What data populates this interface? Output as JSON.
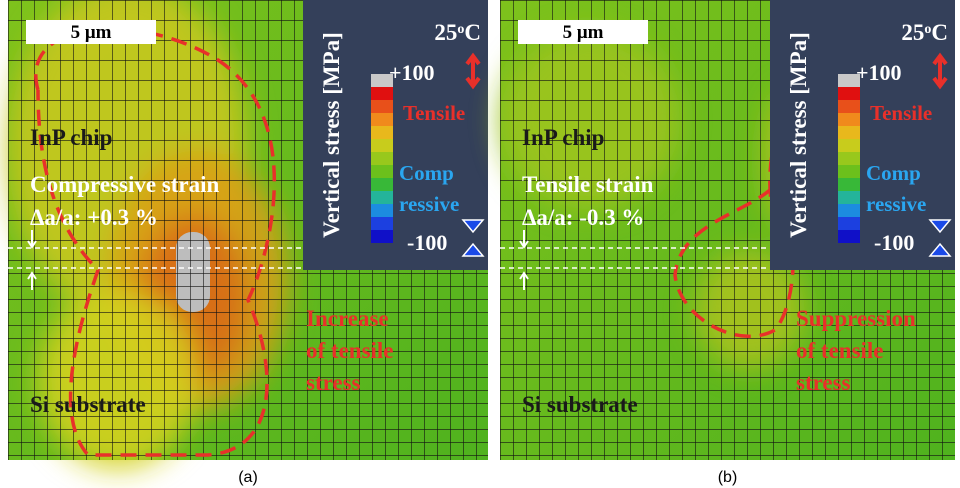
{
  "panels": [
    {
      "caption": "(a)",
      "scale_bar": "5 μm",
      "temperature": {
        "number": "25",
        "degree": "o",
        "unit": "C"
      },
      "colorbar": {
        "title": "Vertical stress [MPa]",
        "max_label": "+100",
        "min_label": "-100",
        "tensile": "Tensile",
        "compressive": [
          "Comp",
          "ressive"
        ]
      },
      "chip": "InP chip",
      "strain": [
        "Compressive strain",
        "Δa/a: +0.3 %"
      ],
      "substrate": "Si substrate",
      "annotation": [
        "Increase",
        "of tensile",
        "stress"
      ]
    },
    {
      "caption": "(b)",
      "scale_bar": "5 μm",
      "temperature": {
        "number": "25",
        "degree": "o",
        "unit": "C"
      },
      "colorbar": {
        "title": "Vertical stress [MPa]",
        "max_label": "+100",
        "min_label": "-100",
        "tensile": "Tensile",
        "compressive": [
          "Comp",
          "ressive"
        ]
      },
      "chip": "InP chip",
      "strain": [
        "Tensile strain",
        "Δa/a: -0.3 %"
      ],
      "substrate": "Si substrate",
      "annotation": [
        "Suppression",
        "of tensile",
        "stress"
      ]
    }
  ]
}
